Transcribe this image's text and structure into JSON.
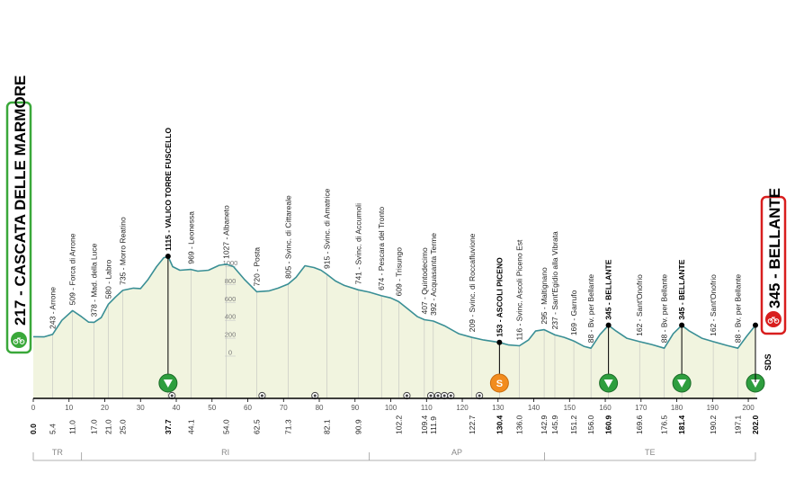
{
  "chart_data": {
    "type": "area",
    "title": "",
    "xlabel": "",
    "ylabel": "",
    "xlim": [
      0,
      202
    ],
    "ylim": [
      0,
      1200
    ],
    "y_ticks": [
      {
        "v": 0,
        "label": "0"
      },
      {
        "v": 200,
        "label": "200"
      },
      {
        "v": 400,
        "label": "400"
      },
      {
        "v": 600,
        "label": "600"
      },
      {
        "v": 800,
        "label": "800"
      },
      {
        "v": 1000,
        "label": "1000"
      }
    ],
    "x_ticks": [
      0,
      10,
      20,
      30,
      40,
      50,
      60,
      70,
      80,
      90,
      100,
      110,
      120,
      130,
      140,
      150,
      160,
      170,
      180,
      190,
      200
    ],
    "start_label": "217 - CASCATA DELLE MARMORE",
    "finish_label": "345 - BELLANTE",
    "sds_label": "SDS",
    "profile": [
      {
        "km": 0.0,
        "alt": 217
      },
      {
        "km": 3.0,
        "alt": 215
      },
      {
        "km": 5.4,
        "alt": 243
      },
      {
        "km": 8.0,
        "alt": 400
      },
      {
        "km": 11.0,
        "alt": 509
      },
      {
        "km": 13.5,
        "alt": 440
      },
      {
        "km": 15.5,
        "alt": 380
      },
      {
        "km": 17.0,
        "alt": 378
      },
      {
        "km": 19.0,
        "alt": 430
      },
      {
        "km": 21.0,
        "alt": 580
      },
      {
        "km": 23.0,
        "alt": 660
      },
      {
        "km": 25.0,
        "alt": 735
      },
      {
        "km": 28.0,
        "alt": 760
      },
      {
        "km": 30.0,
        "alt": 755
      },
      {
        "km": 32.0,
        "alt": 850
      },
      {
        "km": 34.5,
        "alt": 1000
      },
      {
        "km": 36.5,
        "alt": 1100
      },
      {
        "km": 37.7,
        "alt": 1115
      },
      {
        "km": 39.0,
        "alt": 1000
      },
      {
        "km": 41.0,
        "alt": 960
      },
      {
        "km": 44.1,
        "alt": 969
      },
      {
        "km": 46.0,
        "alt": 950
      },
      {
        "km": 49.0,
        "alt": 960
      },
      {
        "km": 52.0,
        "alt": 1015
      },
      {
        "km": 54.0,
        "alt": 1027
      },
      {
        "km": 56.0,
        "alt": 1000
      },
      {
        "km": 59.0,
        "alt": 860
      },
      {
        "km": 62.5,
        "alt": 720
      },
      {
        "km": 66.0,
        "alt": 730
      },
      {
        "km": 68.5,
        "alt": 760
      },
      {
        "km": 71.3,
        "alt": 805
      },
      {
        "km": 73.5,
        "alt": 880
      },
      {
        "km": 76.0,
        "alt": 1010
      },
      {
        "km": 78.5,
        "alt": 990
      },
      {
        "km": 80.5,
        "alt": 960
      },
      {
        "km": 82.1,
        "alt": 915
      },
      {
        "km": 84.5,
        "alt": 840
      },
      {
        "km": 87.0,
        "alt": 790
      },
      {
        "km": 90.9,
        "alt": 741
      },
      {
        "km": 94.0,
        "alt": 715
      },
      {
        "km": 97.4,
        "alt": 674
      },
      {
        "km": 100.0,
        "alt": 650
      },
      {
        "km": 102.2,
        "alt": 609
      },
      {
        "km": 105.0,
        "alt": 520
      },
      {
        "km": 107.5,
        "alt": 440
      },
      {
        "km": 109.4,
        "alt": 407
      },
      {
        "km": 111.9,
        "alt": 392
      },
      {
        "km": 115.0,
        "alt": 340
      },
      {
        "km": 119.0,
        "alt": 250
      },
      {
        "km": 122.7,
        "alt": 209
      },
      {
        "km": 126.0,
        "alt": 180
      },
      {
        "km": 128.5,
        "alt": 165
      },
      {
        "km": 130.4,
        "alt": 153
      },
      {
        "km": 133.0,
        "alt": 125
      },
      {
        "km": 136.0,
        "alt": 116
      },
      {
        "km": 138.5,
        "alt": 180
      },
      {
        "km": 140.5,
        "alt": 280
      },
      {
        "km": 142.9,
        "alt": 295
      },
      {
        "km": 145.9,
        "alt": 237
      },
      {
        "km": 148.5,
        "alt": 210
      },
      {
        "km": 151.2,
        "alt": 169
      },
      {
        "km": 154.0,
        "alt": 110
      },
      {
        "km": 156.0,
        "alt": 88
      },
      {
        "km": 158.5,
        "alt": 240
      },
      {
        "km": 160.9,
        "alt": 345
      },
      {
        "km": 163.0,
        "alt": 280
      },
      {
        "km": 166.0,
        "alt": 200
      },
      {
        "km": 169.6,
        "alt": 162
      },
      {
        "km": 173.0,
        "alt": 130
      },
      {
        "km": 176.5,
        "alt": 88
      },
      {
        "km": 179.0,
        "alt": 250
      },
      {
        "km": 181.4,
        "alt": 345
      },
      {
        "km": 183.5,
        "alt": 280
      },
      {
        "km": 187.0,
        "alt": 200
      },
      {
        "km": 190.2,
        "alt": 162
      },
      {
        "km": 194.0,
        "alt": 120
      },
      {
        "km": 197.1,
        "alt": 88
      },
      {
        "km": 199.5,
        "alt": 220
      },
      {
        "km": 202.0,
        "alt": 345
      }
    ],
    "waypoints": [
      {
        "km": 5.4,
        "label": "243 - Arrone",
        "bold": false
      },
      {
        "km": 11.0,
        "label": "509 - Forca di Arrone",
        "bold": false
      },
      {
        "km": 17.0,
        "label": "378 - Mad. della Luce",
        "bold": false
      },
      {
        "km": 21.0,
        "label": "580 - Labro",
        "bold": false
      },
      {
        "km": 25.0,
        "label": "735 - Morro Reatino",
        "bold": false
      },
      {
        "km": 37.7,
        "label": "1115 - VALICO TORRE FUSCELLO",
        "bold": true
      },
      {
        "km": 44.1,
        "label": "969 - Leonessa",
        "bold": false
      },
      {
        "km": 54.0,
        "label": "1027 - Albaneto",
        "bold": false
      },
      {
        "km": 62.5,
        "label": "720 - Posta",
        "bold": false
      },
      {
        "km": 71.3,
        "label": "805 - Svinc. di Cittareale",
        "bold": false
      },
      {
        "km": 82.1,
        "label": "915 - Svinc. di Amatrice",
        "bold": false
      },
      {
        "km": 90.9,
        "label": "741 - Svinc. di Accumoli",
        "bold": false
      },
      {
        "km": 97.4,
        "label": "674 - Pescara del Tronto",
        "bold": false
      },
      {
        "km": 102.2,
        "label": "609 - Trisungo",
        "bold": false
      },
      {
        "km": 109.4,
        "label": "407 - Quintodecimo",
        "bold": false
      },
      {
        "km": 111.9,
        "label": "392 - Acquasanta Terme",
        "bold": false
      },
      {
        "km": 122.7,
        "label": "209 - Svinc. di Roccafluvione",
        "bold": false
      },
      {
        "km": 130.4,
        "label": "153 - ASCOLI PICENO",
        "bold": true
      },
      {
        "km": 136.0,
        "label": "116 - Svinc. Ascoli Piceno Est",
        "bold": false
      },
      {
        "km": 142.9,
        "label": "295 - Maltignano",
        "bold": false
      },
      {
        "km": 145.9,
        "label": "237 - Sant'Egidio alla Vibrata",
        "bold": false
      },
      {
        "km": 151.2,
        "label": "169 - Garrufo",
        "bold": false
      },
      {
        "km": 156.0,
        "label": "88 - Bv. per Bellante",
        "bold": false
      },
      {
        "km": 160.9,
        "label": "345 - BELLANTE",
        "bold": true
      },
      {
        "km": 169.6,
        "label": "162 - Sant'Onofrio",
        "bold": false
      },
      {
        "km": 176.5,
        "label": "88 - Bv. per Bellante",
        "bold": false
      },
      {
        "km": 181.4,
        "label": "345 - BELLANTE",
        "bold": true
      },
      {
        "km": 190.2,
        "label": "162 - Sant'Onofrio",
        "bold": false
      },
      {
        "km": 197.1,
        "label": "88 - Bv. per Bellante",
        "bold": false
      }
    ],
    "km_labels": [
      {
        "km": 0.0,
        "label": "0.0",
        "bold": true
      },
      {
        "km": 5.4,
        "label": "5.4",
        "bold": false
      },
      {
        "km": 11.0,
        "label": "11.0",
        "bold": false
      },
      {
        "km": 17.0,
        "label": "17.0",
        "bold": false
      },
      {
        "km": 21.0,
        "label": "21.0",
        "bold": false
      },
      {
        "km": 25.0,
        "label": "25.0",
        "bold": false
      },
      {
        "km": 37.7,
        "label": "37.7",
        "bold": true
      },
      {
        "km": 44.1,
        "label": "44.1",
        "bold": false
      },
      {
        "km": 54.0,
        "label": "54.0",
        "bold": false
      },
      {
        "km": 62.5,
        "label": "62.5",
        "bold": false
      },
      {
        "km": 71.3,
        "label": "71.3",
        "bold": false
      },
      {
        "km": 82.1,
        "label": "82.1",
        "bold": false
      },
      {
        "km": 90.9,
        "label": "90.9",
        "bold": false
      },
      {
        "km": 102.2,
        "label": "102.2",
        "bold": false
      },
      {
        "km": 109.4,
        "label": "109.4",
        "bold": false
      },
      {
        "km": 111.9,
        "label": "111.9",
        "bold": false
      },
      {
        "km": 122.7,
        "label": "122.7",
        "bold": false
      },
      {
        "km": 130.4,
        "label": "130.4",
        "bold": true
      },
      {
        "km": 136.0,
        "label": "136.0",
        "bold": false
      },
      {
        "km": 142.9,
        "label": "142.9",
        "bold": false
      },
      {
        "km": 145.9,
        "label": "145.9",
        "bold": false
      },
      {
        "km": 151.2,
        "label": "151.2",
        "bold": false
      },
      {
        "km": 156.0,
        "label": "156.0",
        "bold": false
      },
      {
        "km": 160.9,
        "label": "160.9",
        "bold": true
      },
      {
        "km": 169.6,
        "label": "169.6",
        "bold": false
      },
      {
        "km": 176.5,
        "label": "176.5",
        "bold": false
      },
      {
        "km": 181.4,
        "label": "181.4",
        "bold": true
      },
      {
        "km": 190.2,
        "label": "190.2",
        "bold": false
      },
      {
        "km": 197.1,
        "label": "197.1",
        "bold": false
      },
      {
        "km": 202.0,
        "label": "202.0",
        "bold": true
      }
    ],
    "gpm_markers": [
      37.7,
      160.9,
      181.4,
      202.0
    ],
    "sprint_marker": {
      "km": 130.4,
      "label": "S"
    },
    "tunnel_markers": [
      38.8,
      64.0,
      78.8,
      104.5,
      111.2,
      113.2,
      115.0,
      116.8,
      124.8
    ],
    "provinces": [
      {
        "label": "TR",
        "from": 0,
        "to": 13.5
      },
      {
        "label": "RI",
        "from": 13.5,
        "to": 94
      },
      {
        "label": "AP",
        "from": 94,
        "to": 143
      },
      {
        "label": "TE",
        "from": 143,
        "to": 202
      }
    ],
    "colors": {
      "profile_line": "#3a8f95",
      "profile_fill": "#f1f4df",
      "start_accent": "#3aa83a",
      "finish_accent": "#d81e1e",
      "gpm_green": "#2e9e3e",
      "sprint_orange": "#f28c1e"
    }
  }
}
